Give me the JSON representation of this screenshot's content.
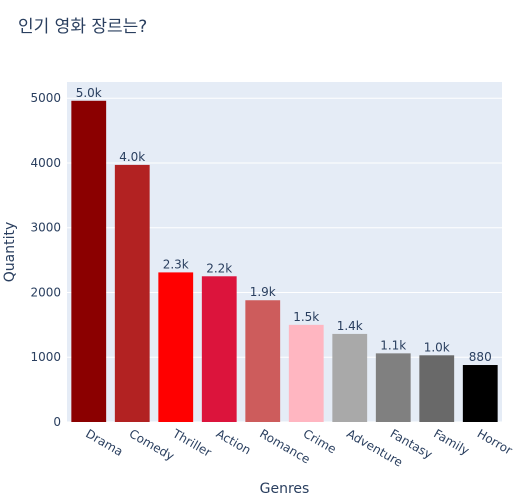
{
  "chart_data": {
    "type": "bar",
    "title": "인기 영화 장르는?",
    "xlabel": "Genres",
    "ylabel": "Quantity",
    "categories": [
      "Drama",
      "Comedy",
      "Thriller",
      "Action",
      "Romance",
      "Crime",
      "Adventure",
      "Fantasy",
      "Family",
      "Horror"
    ],
    "values": [
      4960,
      3970,
      2310,
      2250,
      1880,
      1500,
      1360,
      1060,
      1030,
      880
    ],
    "data_labels": [
      "5.0k",
      "4.0k",
      "2.3k",
      "2.2k",
      "1.9k",
      "1.5k",
      "1.4k",
      "1.1k",
      "1.0k",
      "880"
    ],
    "colors": [
      "#8b0000",
      "#b22222",
      "#ff0000",
      "#dc143c",
      "#cd5c5c",
      "#ffb6c1",
      "#a9a9a9",
      "#808080",
      "#696969",
      "#000000"
    ],
    "ylim": [
      0,
      5250
    ],
    "yticks": [
      0,
      1000,
      2000,
      3000,
      4000,
      5000
    ],
    "grid": true,
    "plot_bg": "#e5ecf6"
  }
}
